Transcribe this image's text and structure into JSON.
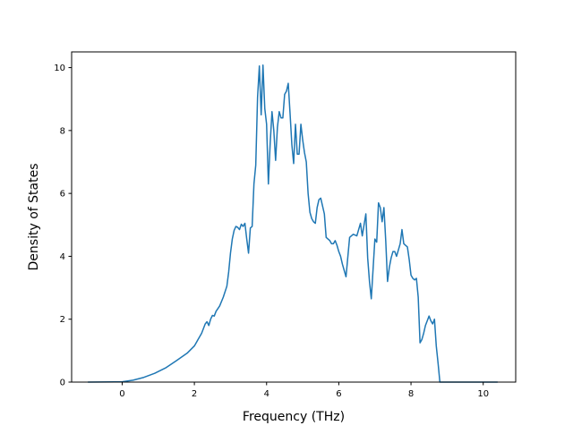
{
  "chart_data": {
    "type": "line",
    "xlabel": "Frequency (THz)",
    "ylabel": "Density of States",
    "xlim": [
      -1.4,
      10.9
    ],
    "ylim": [
      0,
      10.5
    ],
    "xticks": [
      0,
      2,
      4,
      6,
      8,
      10
    ],
    "yticks": [
      0,
      2,
      4,
      6,
      8,
      10
    ],
    "xtick_labels": [
      "0",
      "2",
      "4",
      "6",
      "8",
      "10"
    ],
    "ytick_labels": [
      "0",
      "2",
      "4",
      "6",
      "8",
      "10"
    ],
    "grid": false,
    "line_color": "#1f77b4",
    "series": [
      {
        "x": [
          -0.95,
          0.0,
          0.3,
          0.6,
          0.9,
          1.2,
          1.5,
          1.8,
          2.0,
          2.1,
          2.2,
          2.3,
          2.35,
          2.4,
          2.45,
          2.5,
          2.55,
          2.6,
          2.7,
          2.8,
          2.9,
          2.95,
          3.0,
          3.05,
          3.1,
          3.15,
          3.2,
          3.25,
          3.3,
          3.35,
          3.4,
          3.45,
          3.5,
          3.55,
          3.6,
          3.65,
          3.7,
          3.75,
          3.8,
          3.85,
          3.9,
          3.95,
          4.0,
          4.05,
          4.1,
          4.15,
          4.2,
          4.25,
          4.3,
          4.35,
          4.4,
          4.45,
          4.5,
          4.55,
          4.6,
          4.65,
          4.7,
          4.75,
          4.8,
          4.85,
          4.9,
          4.95,
          5.0,
          5.05,
          5.1,
          5.15,
          5.2,
          5.25,
          5.3,
          5.35,
          5.4,
          5.45,
          5.5,
          5.55,
          5.6,
          5.65,
          5.7,
          5.75,
          5.8,
          5.85,
          5.9,
          5.95,
          6.0,
          6.05,
          6.1,
          6.15,
          6.2,
          6.3,
          6.4,
          6.5,
          6.6,
          6.65,
          6.7,
          6.75,
          6.8,
          6.85,
          6.9,
          6.95,
          7.0,
          7.05,
          7.1,
          7.15,
          7.2,
          7.25,
          7.3,
          7.35,
          7.4,
          7.45,
          7.5,
          7.55,
          7.6,
          7.65,
          7.7,
          7.75,
          7.8,
          7.85,
          7.9,
          7.95,
          8.0,
          8.05,
          8.1,
          8.15,
          8.2,
          8.25,
          8.3,
          8.35,
          8.4,
          8.45,
          8.5,
          8.55,
          8.6,
          8.65,
          8.7,
          8.75,
          8.8,
          8.85,
          8.9,
          8.95,
          9.0,
          9.05,
          9.1,
          9.15,
          9.2,
          9.25,
          9.3,
          9.35,
          9.4,
          9.45,
          10.4
        ],
        "y": [
          0.0,
          0.01,
          0.06,
          0.15,
          0.28,
          0.45,
          0.68,
          0.92,
          1.15,
          1.35,
          1.55,
          1.85,
          1.92,
          1.8,
          2.0,
          2.12,
          2.1,
          2.25,
          2.42,
          2.7,
          3.05,
          3.5,
          4.1,
          4.55,
          4.82,
          4.95,
          4.92,
          4.85,
          5.02,
          4.95,
          5.05,
          4.55,
          4.1,
          4.9,
          4.95,
          6.3,
          6.9,
          9.05,
          10.05,
          8.5,
          10.08,
          8.7,
          8.2,
          6.3,
          7.6,
          8.6,
          8.0,
          7.05,
          8.1,
          8.6,
          8.4,
          8.4,
          9.15,
          9.25,
          9.5,
          8.55,
          7.55,
          6.95,
          8.2,
          7.25,
          7.25,
          8.2,
          7.7,
          7.3,
          7.0,
          6.0,
          5.4,
          5.2,
          5.1,
          5.05,
          5.55,
          5.8,
          5.85,
          5.6,
          5.35,
          4.6,
          4.55,
          4.5,
          4.4,
          4.4,
          4.5,
          4.35,
          4.15,
          4.0,
          3.75,
          3.55,
          3.35,
          4.6,
          4.7,
          4.65,
          5.05,
          4.65,
          5.0,
          5.35,
          3.95,
          3.2,
          2.65,
          3.6,
          4.55,
          4.45,
          5.7,
          5.55,
          5.1,
          5.55,
          4.5,
          3.2,
          3.65,
          3.95,
          4.15,
          4.15,
          4.0,
          4.2,
          4.4,
          4.85,
          4.4,
          4.35,
          4.3,
          3.9,
          3.4,
          3.3,
          3.25,
          3.3,
          2.7,
          1.25,
          1.35,
          1.55,
          1.8,
          1.95,
          2.1,
          1.95,
          1.85,
          2.0,
          1.15,
          0.6,
          0.0,
          0.0,
          0.0,
          0.0,
          0.0,
          0.0,
          0.0,
          0.0,
          0.0,
          0.0,
          0.0,
          0.0,
          0.0,
          0.0,
          0.0
        ]
      }
    ]
  }
}
